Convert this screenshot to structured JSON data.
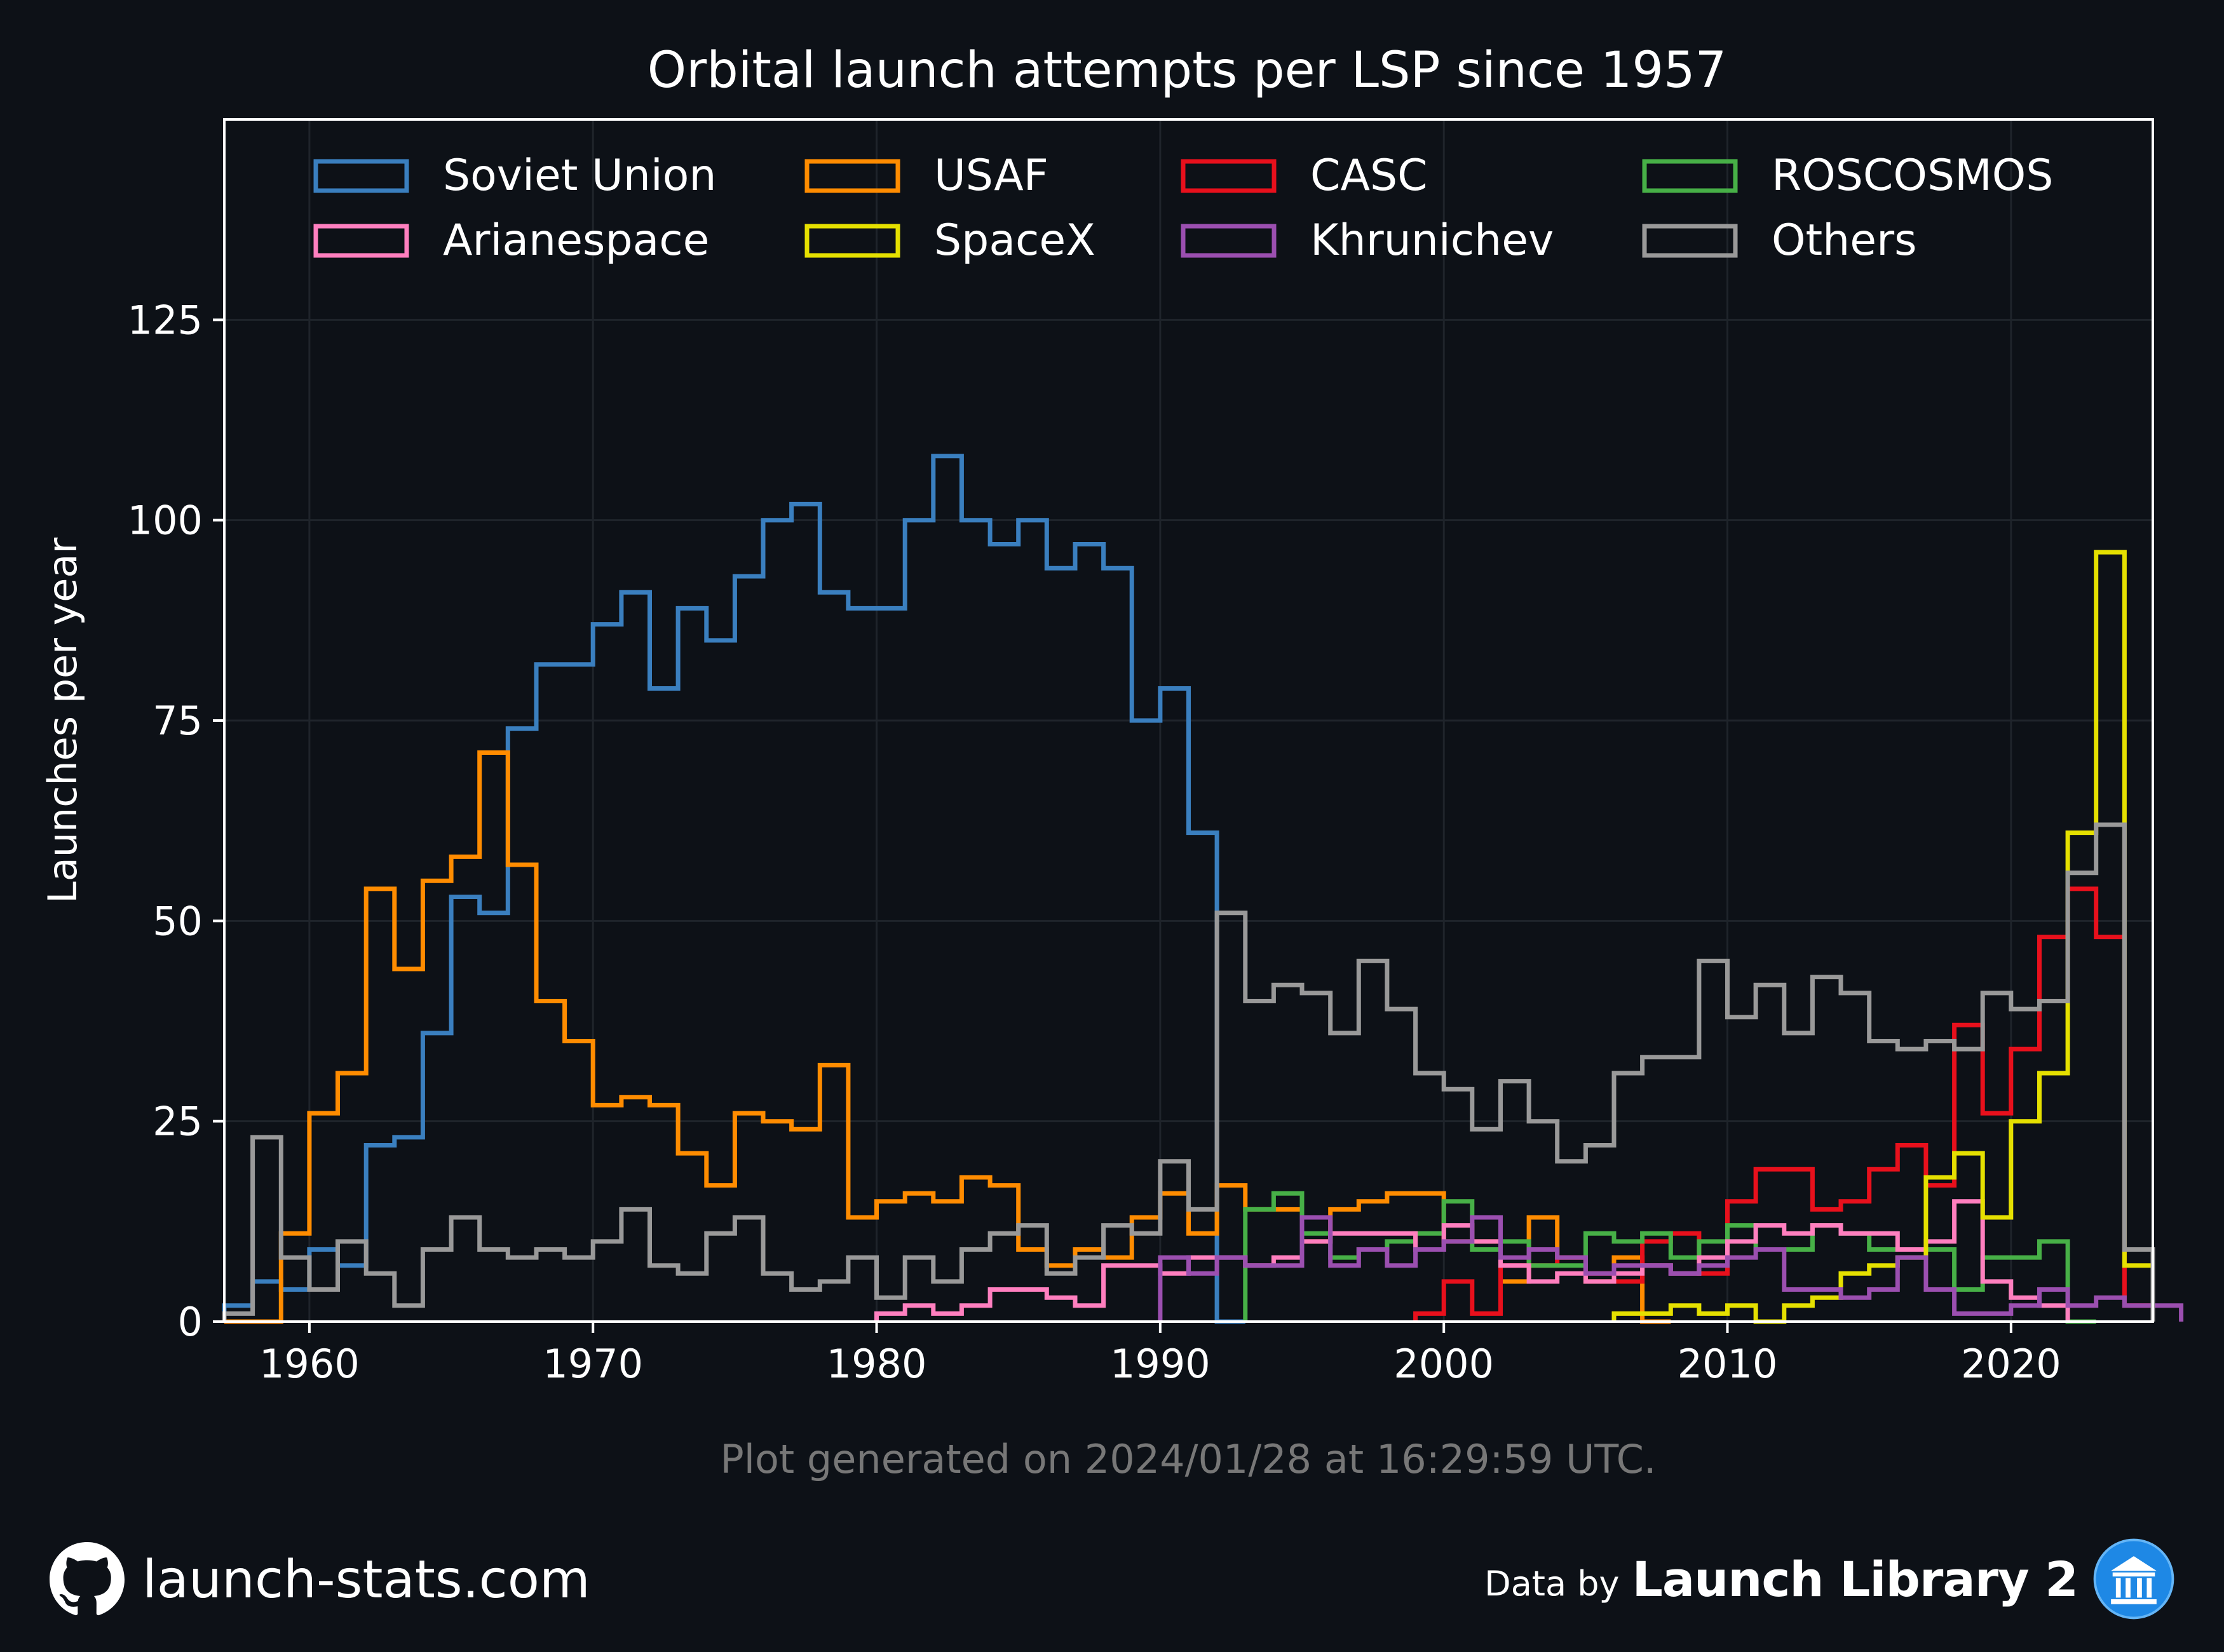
{
  "header": {
    "title": "Orbital launch attempts per LSP since 1957"
  },
  "footer": {
    "note": "Plot generated on 2024/01/28 at 16:29:59 UTC.",
    "site": "launch-stats.com",
    "data_by": "Data by",
    "source": "Launch Library 2",
    "github_icon": "github-icon",
    "source_icon": "launch-library-icon"
  },
  "colors": {
    "background": "#0d1117",
    "axes": "#ffffff",
    "note": "#777777"
  },
  "chart_data": {
    "type": "line",
    "step": true,
    "title": "Orbital launch attempts per LSP since 1957",
    "xlabel": "",
    "ylabel": "Launches per year",
    "xlim": [
      1957,
      2025
    ],
    "ylim": [
      0,
      150
    ],
    "xticks": [
      1960,
      1970,
      1980,
      1990,
      2000,
      2010,
      2020
    ],
    "yticks": [
      0,
      25,
      50,
      75,
      100,
      125
    ],
    "legend_position": "top",
    "grid": true,
    "series": [
      {
        "name": "Soviet Union",
        "color": "#3a7fbf",
        "start": 1957,
        "values": [
          2,
          5,
          4,
          9,
          7,
          22,
          23,
          36,
          53,
          51,
          74,
          82,
          82,
          87,
          91,
          79,
          89,
          85,
          93,
          100,
          102,
          91,
          89,
          89,
          100,
          108,
          100,
          97,
          100,
          94,
          97,
          94,
          75,
          79,
          61,
          0
        ]
      },
      {
        "name": "USAF",
        "color": "#ff8c00",
        "start": 1957,
        "values": [
          0,
          0,
          11,
          26,
          31,
          54,
          44,
          55,
          58,
          71,
          57,
          40,
          35,
          27,
          28,
          27,
          21,
          17,
          26,
          25,
          24,
          32,
          13,
          15,
          16,
          15,
          18,
          17,
          9,
          7,
          9,
          8,
          13,
          16,
          11,
          17,
          14,
          14,
          10,
          14,
          15,
          16,
          16,
          10,
          10,
          5,
          13,
          8,
          5,
          8,
          0
        ]
      },
      {
        "name": "CASC",
        "color": "#e8101c",
        "start": 1999,
        "values": [
          1,
          5,
          1,
          7,
          7,
          8,
          6,
          5,
          10,
          11,
          6,
          15,
          19,
          19,
          14,
          15,
          19,
          22,
          17,
          37,
          26,
          34,
          48,
          54,
          48,
          2
        ]
      },
      {
        "name": "ROSCOSMOS",
        "color": "#47b047",
        "start": 1993,
        "values": [
          14,
          16,
          11,
          8,
          9,
          10,
          11,
          15,
          9,
          10,
          7,
          7,
          11,
          10,
          11,
          8,
          10,
          12,
          9,
          9,
          12,
          11,
          9,
          9,
          9,
          4,
          8,
          8,
          10,
          0
        ]
      },
      {
        "name": "Arianespace",
        "color": "#ff7fbf",
        "start": 1980,
        "values": [
          1,
          2,
          1,
          2,
          4,
          4,
          3,
          2,
          7,
          7,
          6,
          8,
          8,
          7,
          8,
          10,
          11,
          11,
          11,
          9,
          12,
          10,
          7,
          5,
          6,
          5,
          6,
          7,
          6,
          8,
          10,
          12,
          11,
          12,
          11,
          11,
          9,
          10,
          15,
          5,
          3,
          2
        ]
      },
      {
        "name": "SpaceX",
        "color": "#e5e000",
        "start": 2006,
        "values": [
          1,
          1,
          2,
          1,
          2,
          0,
          2,
          3,
          6,
          7,
          8,
          18,
          21,
          13,
          25,
          31,
          61,
          96,
          7
        ]
      },
      {
        "name": "Khrunichev",
        "color": "#9b4fb0",
        "start": 1990,
        "values": [
          8,
          6,
          8,
          7,
          7,
          13,
          7,
          9,
          7,
          9,
          10,
          13,
          8,
          9,
          8,
          6,
          7,
          7,
          6,
          7,
          8,
          9,
          4,
          4,
          3,
          4,
          8,
          4,
          1,
          1,
          2,
          4,
          2,
          3,
          2,
          2
        ]
      },
      {
        "name": "Others",
        "color": "#999999",
        "start": 1957,
        "values": [
          1,
          23,
          8,
          4,
          10,
          6,
          2,
          9,
          13,
          9,
          8,
          9,
          8,
          10,
          14,
          7,
          6,
          11,
          13,
          6,
          4,
          5,
          8,
          3,
          8,
          5,
          9,
          11,
          12,
          6,
          8,
          12,
          11,
          20,
          14,
          51,
          40,
          42,
          41,
          36,
          45,
          39,
          31,
          29,
          24,
          30,
          25,
          20,
          22,
          31,
          33,
          33,
          45,
          38,
          42,
          36,
          43,
          41,
          35,
          34,
          35,
          34,
          41,
          39,
          40,
          56,
          62,
          9
        ]
      }
    ]
  }
}
